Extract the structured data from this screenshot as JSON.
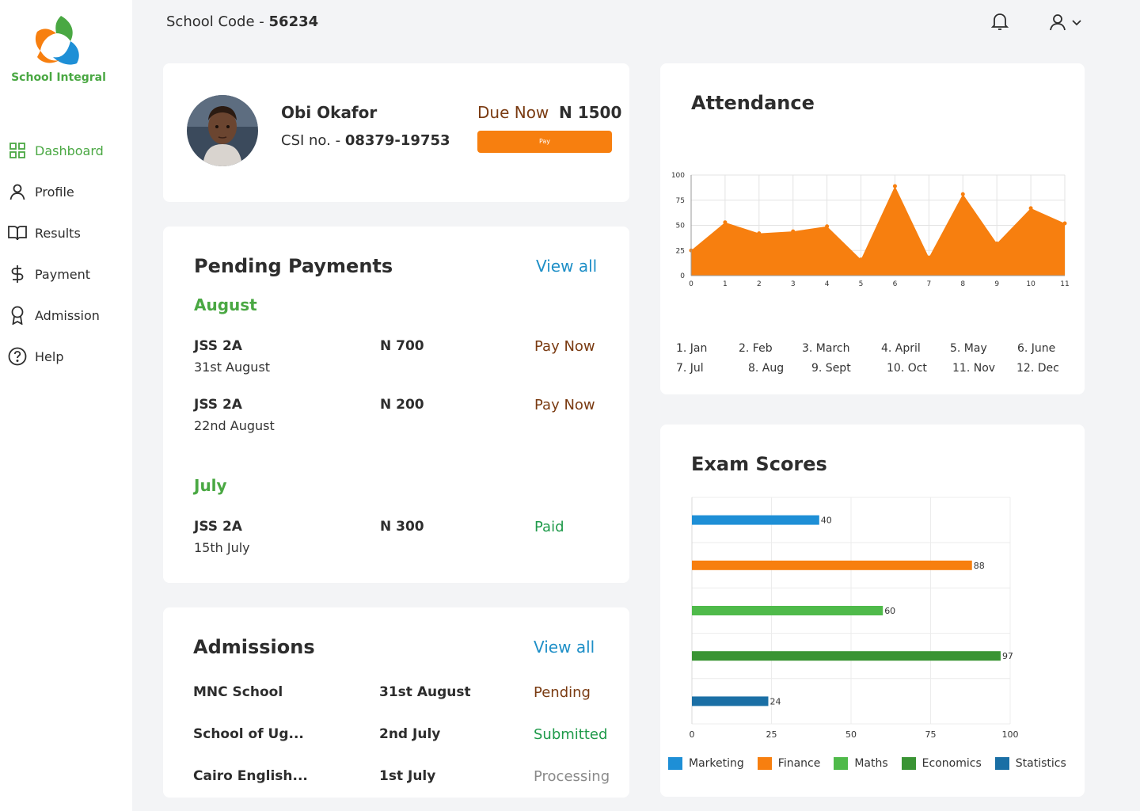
{
  "app": {
    "name": "School Integral"
  },
  "header": {
    "school_code_label": "School Code -",
    "school_code": "56234"
  },
  "sidebar": {
    "items": [
      {
        "label": "Dashboard",
        "icon": "grid-icon",
        "active": true
      },
      {
        "label": "Profile",
        "icon": "user-icon"
      },
      {
        "label": "Results",
        "icon": "book-icon"
      },
      {
        "label": "Payment",
        "icon": "dollar-icon"
      },
      {
        "label": "Admission",
        "icon": "award-icon"
      },
      {
        "label": "Help",
        "icon": "help-circle-icon"
      }
    ]
  },
  "profile": {
    "name": "Obi Okafor",
    "csi_label": "CSI no. -",
    "csi_number": "08379-19753",
    "due_label": "Due Now",
    "due_amount": "N 1500",
    "pay_label": "Pay"
  },
  "pending_payments": {
    "title": "Pending Payments",
    "view_all": "View all",
    "groups": [
      {
        "month": "August",
        "rows": [
          {
            "class": "JSS 2A",
            "date": "31st August",
            "amount": "N 700",
            "action": "Pay Now"
          },
          {
            "class": "JSS 2A",
            "date": "22nd August",
            "amount": "N 200",
            "action": "Pay Now"
          }
        ]
      },
      {
        "month": "July",
        "rows": [
          {
            "class": "JSS 2A",
            "date": "15th July",
            "amount": "N 300",
            "action": "Paid"
          }
        ]
      }
    ]
  },
  "admissions": {
    "title": "Admissions",
    "view_all": "View all",
    "rows": [
      {
        "school": "MNC School",
        "date": "31st August",
        "status": "Pending"
      },
      {
        "school": "School of Ug...",
        "date": "2nd July",
        "status": "Submitted"
      },
      {
        "school": "Cairo English...",
        "date": "1st July",
        "status": "Processing"
      }
    ]
  },
  "colors": {
    "brand_green": "#4aa843",
    "accent_orange": "#f77f0f",
    "link_blue": "#1e8fc7",
    "pay_now": "#7a3b12",
    "paid": "#1f9a4a",
    "pending": "#7a3b12",
    "submitted": "#1f9a4a",
    "processing": "#8a8a8a"
  },
  "chart_data": [
    {
      "type": "area",
      "title": "Attendance",
      "x": [
        0,
        1,
        2,
        3,
        4,
        5,
        6,
        7,
        8,
        9,
        10,
        11
      ],
      "series": [
        {
          "values": [
            25,
            53,
            42,
            44,
            49,
            16,
            89,
            18,
            81,
            32,
            67,
            52
          ]
        }
      ],
      "ylim": [
        0,
        100
      ],
      "yticks": [
        0,
        25,
        50,
        75,
        100
      ],
      "grid": true,
      "color": "#f77f0f",
      "month_legend": [
        "1. Jan",
        "2. Feb",
        "3. March",
        "4. April",
        "5. May",
        "6. June",
        "7. Jul",
        "8. Aug",
        "9. Sept",
        "10. Oct",
        "11. Nov",
        "12. Dec"
      ]
    },
    {
      "type": "bar",
      "orientation": "horizontal",
      "title": "Exam Scores",
      "categories": [
        "Marketing",
        "Finance",
        "Maths",
        "Economics",
        "Statistics"
      ],
      "values": [
        40,
        88,
        60,
        97,
        24
      ],
      "colors": [
        "#1e8fd6",
        "#f77f0f",
        "#4fba4a",
        "#3a9434",
        "#1a6fa5"
      ],
      "xlim": [
        0,
        100
      ],
      "xticks": [
        0,
        25,
        50,
        75,
        100
      ],
      "grid": true,
      "legend": "bottom"
    }
  ]
}
